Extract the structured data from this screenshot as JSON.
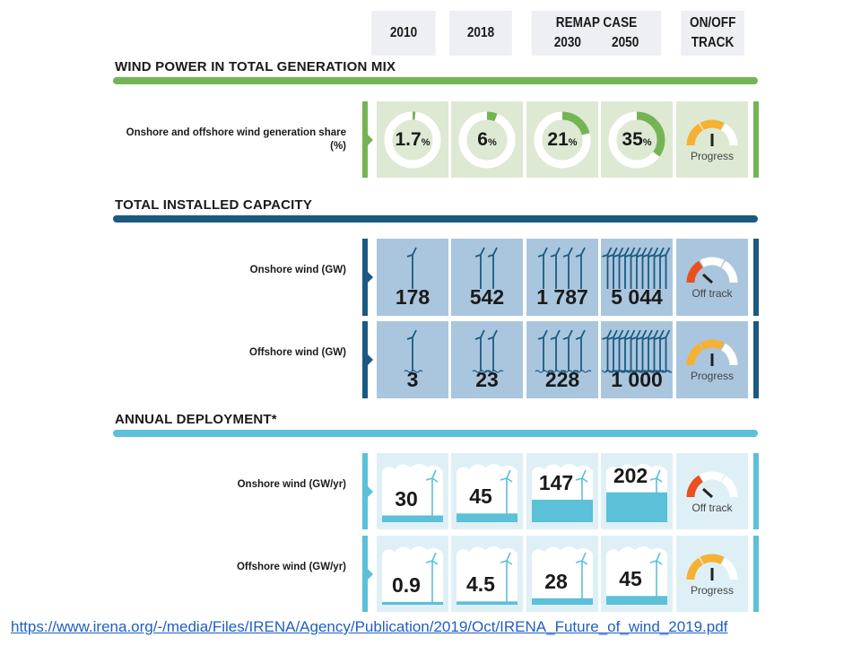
{
  "header": {
    "col_2010": "2010",
    "col_2018": "2018",
    "remap_case": "REMAP CASE",
    "col_2030": "2030",
    "col_2050": "2050",
    "track": "ON/OFF TRACK"
  },
  "sections": [
    {
      "title": "WIND POWER IN TOTAL GENERATION MIX",
      "color": "#74b455",
      "cell_color": "#dde9d3",
      "rows": [
        {
          "label": "Onshore and offshore wind generation share (%)",
          "kind": "donut",
          "values": [
            "1.7",
            "6",
            "21",
            "35"
          ],
          "unit": "%",
          "status": "Progress"
        }
      ]
    },
    {
      "title": "TOTAL INSTALLED CAPACITY",
      "color": "#1b5a80",
      "cell_color": "#a9c6de",
      "rows": [
        {
          "label": "Onshore wind (GW)",
          "kind": "turbine",
          "values": [
            "178",
            "542",
            "1 787",
            "5 044"
          ],
          "turbine_counts": [
            1,
            2,
            4,
            11
          ],
          "status": "Off track"
        },
        {
          "label": "Offshore wind (GW)",
          "kind": "turbine-offshore",
          "values": [
            "3",
            "23",
            "228",
            "1 000"
          ],
          "turbine_counts": [
            1,
            2,
            4,
            11
          ],
          "status": "Progress"
        }
      ]
    },
    {
      "title": "ANNUAL DEPLOYMENT*",
      "color": "#5bc0d8",
      "cell_color": "#def0f5",
      "rows": [
        {
          "label": "Onshore wind (GW/yr)",
          "kind": "deploy",
          "values": [
            "30",
            "45",
            "147",
            "202"
          ],
          "status": "Off track"
        },
        {
          "label": "Offshore wind (GW/yr)",
          "kind": "deploy",
          "values": [
            "0.9",
            "4.5",
            "28",
            "45"
          ],
          "status": "Progress"
        }
      ]
    }
  ],
  "colors": {
    "off_track": "#e8501f",
    "progress": "#f6b133",
    "turbine": "#1b5a80",
    "deploy": "#5bc0d8"
  },
  "source_url": "https://www.irena.org/-/media/Files/IRENA/Agency/Publication/2019/Oct/IRENA_Future_of_wind_2019.pdf"
}
